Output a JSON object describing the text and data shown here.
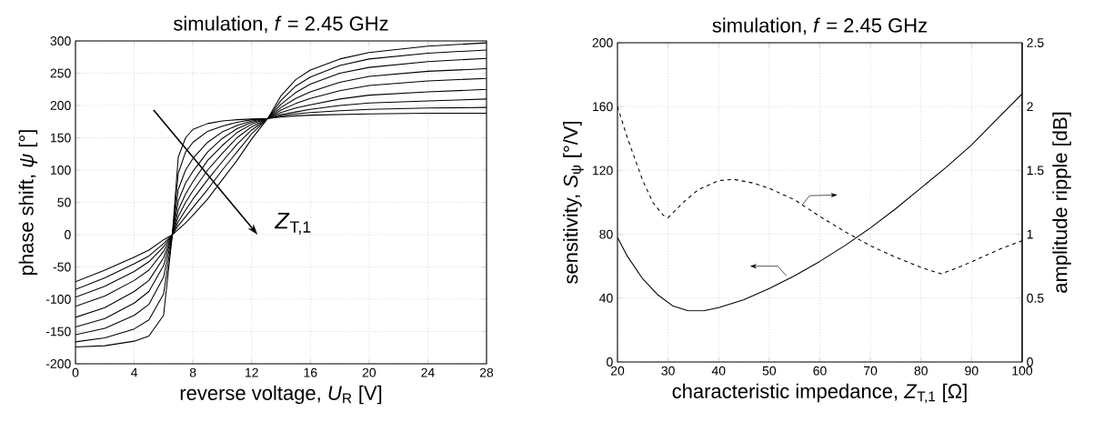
{
  "chart_data": [
    {
      "type": "line",
      "title": "simulation, *f* = 2.45 GHz",
      "xlabel": "reverse voltage, *U*$_{R}$ [V]",
      "ylabel": "phase shift, *ψ* [°]",
      "x": [
        0,
        2,
        4,
        5,
        6,
        6.6,
        7,
        7.5,
        8,
        9,
        10,
        11,
        12,
        13.1,
        14,
        15,
        16,
        18,
        20,
        24,
        28
      ],
      "series": [
        {
          "color": "#000000",
          "values": [
            -73,
            -55,
            -35,
            -24,
            -8,
            0,
            8,
            18,
            30,
            55,
            85,
            115,
            148,
            180,
            215,
            240,
            255,
            272,
            282,
            292,
            297
          ]
        },
        {
          "color": "#000000",
          "values": [
            -85,
            -67,
            -45,
            -33,
            -14,
            0,
            14,
            28,
            42,
            70,
            100,
            128,
            156,
            180,
            208,
            230,
            244,
            262,
            272,
            281,
            286
          ]
        },
        {
          "color": "#000000",
          "values": [
            -97,
            -80,
            -57,
            -42,
            -19,
            0,
            20,
            38,
            55,
            85,
            113,
            140,
            162,
            180,
            202,
            220,
            233,
            250,
            259,
            268,
            273
          ]
        },
        {
          "color": "#000000",
          "values": [
            -111,
            -95,
            -71,
            -55,
            -26,
            0,
            28,
            50,
            68,
            100,
            126,
            150,
            167,
            180,
            197,
            211,
            221,
            236,
            245,
            253,
            257
          ]
        },
        {
          "color": "#000000",
          "values": [
            -128,
            -113,
            -88,
            -71,
            -36,
            0,
            38,
            63,
            82,
            115,
            138,
            158,
            171,
            180,
            193,
            203,
            211,
            223,
            231,
            238,
            242
          ]
        },
        {
          "color": "#000000",
          "values": [
            -143,
            -130,
            -106,
            -88,
            -48,
            0,
            52,
            80,
            98,
            128,
            149,
            164,
            174,
            180,
            189,
            196,
            201,
            210,
            216,
            221,
            225
          ]
        },
        {
          "color": "#000000",
          "values": [
            -155,
            -145,
            -125,
            -108,
            -66,
            0,
            70,
            100,
            118,
            143,
            159,
            169,
            176,
            180,
            186,
            190,
            194,
            200,
            204,
            207,
            210
          ]
        },
        {
          "color": "#000000",
          "values": [
            -166,
            -160,
            -146,
            -132,
            -92,
            0,
            95,
            128,
            143,
            160,
            168,
            174,
            178,
            180,
            184,
            187,
            189,
            192,
            194,
            196,
            197
          ]
        },
        {
          "color": "#000000",
          "values": [
            -174,
            -172,
            -165,
            -157,
            -125,
            0,
            120,
            150,
            163,
            172,
            176,
            178,
            179,
            180,
            182,
            184,
            185,
            186,
            187,
            188,
            188
          ]
        }
      ],
      "xlim": [
        0,
        28
      ],
      "ylim": [
        -200,
        300
      ],
      "xticks": [
        0,
        4,
        8,
        12,
        16,
        20,
        24,
        28
      ],
      "yticks": [
        -200,
        -150,
        -100,
        -50,
        0,
        50,
        100,
        150,
        200,
        250,
        300
      ],
      "grid": true,
      "marker": "none",
      "annotations": [
        "*Z*$_{T,1}$"
      ]
    },
    {
      "type": "line",
      "title": "simulation, *f* = 2.45 GHz",
      "xlabel": "characteristic impedance, *Z*$_{T,1}$ [Ω]",
      "ylabel": "sensitivity, *S*$_{ψ}$ [°/V]",
      "y2label": "amplitude ripple [dB]",
      "series": [
        {
          "color": "#000000",
          "line_style": "solid",
          "x": [
            20,
            22,
            25,
            28,
            31,
            34,
            37,
            40,
            45,
            50,
            55,
            60,
            65,
            70,
            75,
            80,
            85,
            90,
            95,
            100
          ],
          "values": [
            78,
            66,
            52,
            42,
            35,
            32,
            32,
            34,
            39,
            46,
            54,
            63,
            73,
            84,
            96,
            109,
            122,
            136,
            152,
            168
          ]
        },
        {
          "color": "#000000",
          "line_style": "dashed",
          "axis": "y2",
          "x": [
            20,
            22,
            25,
            27,
            29,
            30,
            33,
            36,
            40,
            43,
            47,
            50,
            55,
            60,
            65,
            70,
            75,
            80,
            84,
            88,
            92,
            96,
            100
          ],
          "values": [
            2.0,
            1.75,
            1.42,
            1.25,
            1.15,
            1.13,
            1.25,
            1.35,
            1.42,
            1.43,
            1.4,
            1.36,
            1.27,
            1.14,
            1.02,
            0.91,
            0.82,
            0.74,
            0.69,
            0.75,
            0.82,
            0.89,
            0.95
          ]
        }
      ],
      "xlim": [
        20,
        100
      ],
      "ylim": [
        0,
        200
      ],
      "y2lim": [
        0,
        2.5
      ],
      "xticks": [
        20,
        30,
        40,
        50,
        60,
        70,
        80,
        90,
        100
      ],
      "yticks": [
        0,
        40,
        80,
        120,
        160,
        200
      ],
      "y2ticks": [
        0,
        0.5,
        1,
        1.5,
        2,
        2.5
      ],
      "grid": true,
      "marker": "none"
    }
  ]
}
